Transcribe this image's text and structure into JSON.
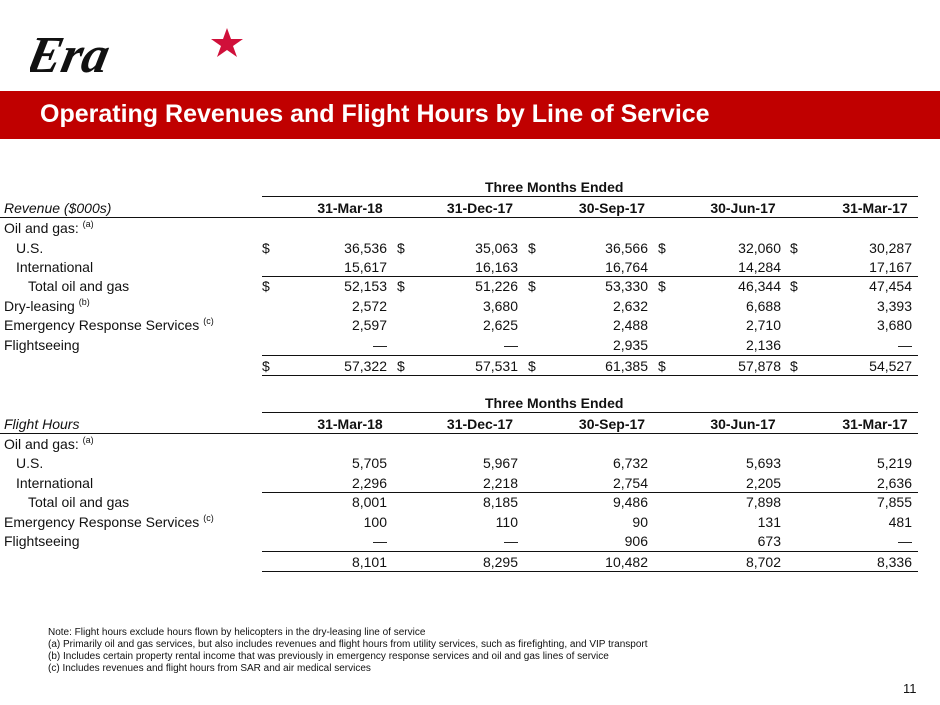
{
  "brand": {
    "logo_text": "Era",
    "accent": "#c00000",
    "star_color": "#d0103a"
  },
  "title": "Operating Revenues and Flight Hours by Line of Service",
  "columns": [
    "31-Mar-18",
    "31-Dec-17",
    "30-Sep-17",
    "30-Jun-17",
    "31-Mar-17"
  ],
  "revenue": {
    "group_header": "Three Months Ended",
    "row_header": "Revenue ($000s)",
    "rows": [
      {
        "label": "Oil and gas:",
        "note": "(a)",
        "indent": 0,
        "values": [
          "",
          "",
          "",
          "",
          ""
        ],
        "dollar": false
      },
      {
        "label": "U.S.",
        "indent": 1,
        "values": [
          "36,536",
          "35,063",
          "36,566",
          "32,060",
          "30,287"
        ],
        "dollar": true
      },
      {
        "label": "International",
        "indent": 1,
        "values": [
          "15,617",
          "16,163",
          "16,764",
          "14,284",
          "17,167"
        ],
        "dollar": false
      },
      {
        "label": "Total oil and gas",
        "indent": 2,
        "values": [
          "52,153",
          "51,226",
          "53,330",
          "46,344",
          "47,454"
        ],
        "dollar": true
      },
      {
        "label": "Dry-leasing",
        "note": "(b)",
        "indent": 0,
        "values": [
          "2,572",
          "3,680",
          "2,632",
          "6,688",
          "3,393"
        ],
        "dollar": false
      },
      {
        "label": "Emergency Response Services",
        "note": "(c)",
        "indent": 0,
        "values": [
          "2,597",
          "2,625",
          "2,488",
          "2,710",
          "3,680"
        ],
        "dollar": false
      },
      {
        "label": "Flightseeing",
        "indent": 0,
        "values": [
          "—",
          "—",
          "2,935",
          "2,136",
          "—"
        ],
        "dollar": false
      },
      {
        "label": "",
        "indent": 0,
        "values": [
          "57,322",
          "57,531",
          "61,385",
          "57,878",
          "54,527"
        ],
        "dollar": true
      }
    ],
    "currency_symbol": "$"
  },
  "flight": {
    "group_header": "Three Months Ended",
    "row_header": "Flight Hours",
    "rows": [
      {
        "label": "Oil and gas:",
        "note": "(a)",
        "indent": 0,
        "values": [
          "",
          "",
          "",
          "",
          ""
        ]
      },
      {
        "label": "U.S.",
        "indent": 1,
        "values": [
          "5,705",
          "5,967",
          "6,732",
          "5,693",
          "5,219"
        ]
      },
      {
        "label": "International",
        "indent": 1,
        "values": [
          "2,296",
          "2,218",
          "2,754",
          "2,205",
          "2,636"
        ]
      },
      {
        "label": "Total oil and gas",
        "indent": 2,
        "values": [
          "8,001",
          "8,185",
          "9,486",
          "7,898",
          "7,855"
        ]
      },
      {
        "label": "Emergency Response Services",
        "note": "(c)",
        "indent": 0,
        "values": [
          "100",
          "110",
          "90",
          "131",
          "481"
        ]
      },
      {
        "label": "Flightseeing",
        "indent": 0,
        "values": [
          "—",
          "—",
          "906",
          "673",
          "—"
        ]
      },
      {
        "label": "",
        "indent": 0,
        "values": [
          "8,101",
          "8,295",
          "10,482",
          "8,702",
          "8,336"
        ]
      }
    ]
  },
  "notes": [
    "Note:  Flight hours exclude hours flown by helicopters in the dry-leasing line of service",
    "(a)   Primarily oil and gas services, but also includes revenues and flight hours from utility services, such as firefighting, and VIP transport",
    "(b)   Includes certain property rental income that was previously in emergency response services and oil and gas lines of service",
    "(c)   Includes revenues and flight hours from SAR and air medical services"
  ],
  "page_number": "11"
}
